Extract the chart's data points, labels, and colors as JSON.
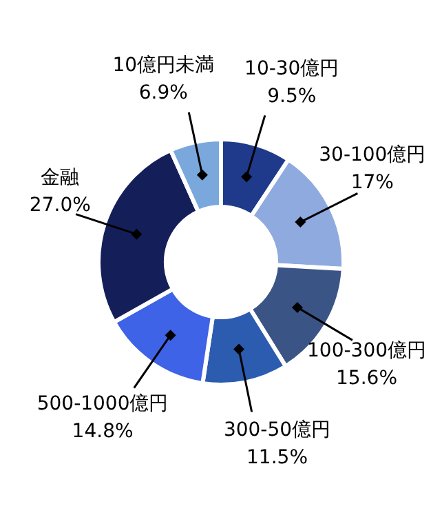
{
  "chart_data": {
    "type": "donut",
    "categories": [
      "10-30億円",
      "30-100億円",
      "100-300億円",
      "300-50億円",
      "500-1000億円",
      "金融",
      "10億円未満"
    ],
    "values": [
      9.5,
      17,
      15.6,
      11.5,
      14.8,
      27.0,
      6.9
    ],
    "colors": [
      "#1f3a8a",
      "#8eaadf",
      "#3a5585",
      "#2b5cb0",
      "#3f63e6",
      "#141f5a",
      "#7aa8dc"
    ],
    "value_labels": [
      "9.5%",
      "17%",
      "15.6%",
      "11.5%",
      "14.8%",
      "27.0%",
      "6.9%"
    ],
    "legend": false
  }
}
